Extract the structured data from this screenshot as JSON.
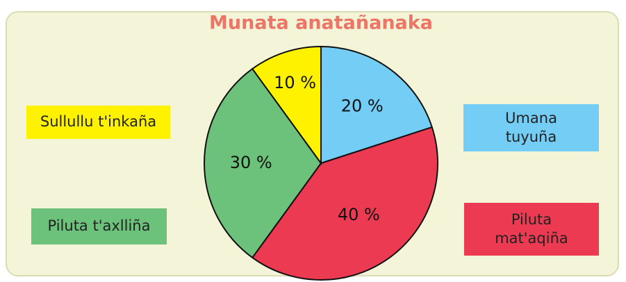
{
  "chart_data": {
    "type": "pie",
    "title": "Munata anatañanaka",
    "categories": [
      "Umana tuyuña",
      "Piluta mat'aqiña",
      "Piluta t'axlliña",
      "Sullullu t'inkaña"
    ],
    "values": [
      20,
      40,
      30,
      10
    ],
    "value_labels": [
      "20 %",
      "40 %",
      "30 %",
      "10 %"
    ],
    "colors": [
      "#73cdf5",
      "#ec3a52",
      "#6cc27a",
      "#fff200"
    ]
  }
}
